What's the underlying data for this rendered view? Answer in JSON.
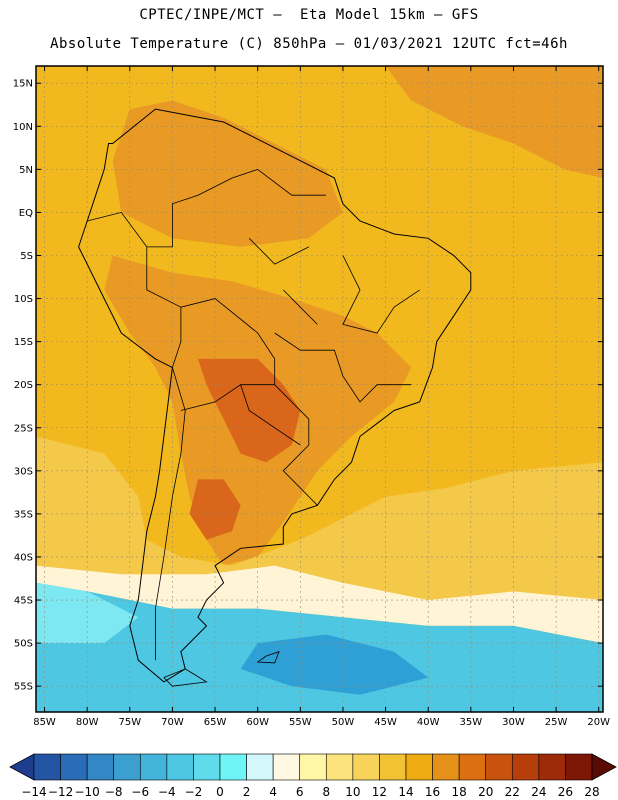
{
  "title": {
    "line1": "CPTEC/INPE/MCT –  Eta Model 15km – GFS",
    "line2": "Absolute Temperature (C) 850hPa – 01/03/2021 12UTC fct=46h"
  },
  "map": {
    "lon_range": [
      -86,
      -19.5
    ],
    "lat_range": [
      -58,
      17
    ],
    "lat_ticks": [
      {
        "value": 15,
        "label": "15N"
      },
      {
        "value": 10,
        "label": "10N"
      },
      {
        "value": 5,
        "label": "5N"
      },
      {
        "value": 0,
        "label": "EQ"
      },
      {
        "value": -5,
        "label": "5S"
      },
      {
        "value": -10,
        "label": "10S"
      },
      {
        "value": -15,
        "label": "15S"
      },
      {
        "value": -20,
        "label": "20S"
      },
      {
        "value": -25,
        "label": "25S"
      },
      {
        "value": -30,
        "label": "30S"
      },
      {
        "value": -35,
        "label": "35S"
      },
      {
        "value": -40,
        "label": "40S"
      },
      {
        "value": -45,
        "label": "45S"
      },
      {
        "value": -50,
        "label": "50S"
      },
      {
        "value": -55,
        "label": "55S"
      }
    ],
    "lon_ticks": [
      {
        "value": -85,
        "label": "85W"
      },
      {
        "value": -80,
        "label": "80W"
      },
      {
        "value": -75,
        "label": "75W"
      },
      {
        "value": -70,
        "label": "70W"
      },
      {
        "value": -65,
        "label": "65W"
      },
      {
        "value": -60,
        "label": "60W"
      },
      {
        "value": -55,
        "label": "55W"
      },
      {
        "value": -50,
        "label": "50W"
      },
      {
        "value": -45,
        "label": "45W"
      },
      {
        "value": -40,
        "label": "40W"
      },
      {
        "value": -35,
        "label": "35W"
      },
      {
        "value": -30,
        "label": "30W"
      },
      {
        "value": -25,
        "label": "25W"
      },
      {
        "value": -20,
        "label": "20W"
      }
    ],
    "background_field_color": "#f2b91e",
    "regions": [
      {
        "name": "northern-atlantic-warm",
        "color": "#e99a25",
        "points": [
          [
            -45,
            17
          ],
          [
            -19.5,
            17
          ],
          [
            -19.5,
            4
          ],
          [
            -24,
            5
          ],
          [
            -30,
            8
          ],
          [
            -36,
            10
          ],
          [
            -42,
            13
          ]
        ]
      },
      {
        "name": "northern-continent-warm",
        "color": "#e99a25",
        "points": [
          [
            -75,
            12
          ],
          [
            -70,
            13
          ],
          [
            -64,
            11
          ],
          [
            -58,
            8
          ],
          [
            -52,
            5
          ],
          [
            -50,
            0
          ],
          [
            -54,
            -3
          ],
          [
            -62,
            -4
          ],
          [
            -70,
            -3
          ],
          [
            -76,
            0
          ],
          [
            -77,
            6
          ]
        ]
      },
      {
        "name": "central-continent-warm",
        "color": "#e99a25",
        "points": [
          [
            -77,
            -5
          ],
          [
            -70,
            -7
          ],
          [
            -63,
            -8
          ],
          [
            -56,
            -10
          ],
          [
            -50,
            -12
          ],
          [
            -46,
            -14
          ],
          [
            -42,
            -18
          ],
          [
            -44,
            -22
          ],
          [
            -49,
            -26
          ],
          [
            -53,
            -30
          ],
          [
            -57,
            -36
          ],
          [
            -60,
            -40
          ],
          [
            -64,
            -41
          ],
          [
            -66,
            -38
          ],
          [
            -68,
            -33
          ],
          [
            -69,
            -28
          ],
          [
            -70,
            -22
          ],
          [
            -72,
            -18
          ],
          [
            -75,
            -14
          ],
          [
            -78,
            -9
          ]
        ]
      },
      {
        "name": "central-hot-core",
        "color": "#d9661a",
        "points": [
          [
            -67,
            -17
          ],
          [
            -60,
            -17
          ],
          [
            -57,
            -20
          ],
          [
            -55,
            -23
          ],
          [
            -56,
            -27
          ],
          [
            -59,
            -29
          ],
          [
            -62,
            -28
          ],
          [
            -64,
            -24
          ],
          [
            -66,
            -20
          ]
        ]
      },
      {
        "name": "argentina-hot-core",
        "color": "#d9661a",
        "points": [
          [
            -67,
            -31
          ],
          [
            -64,
            -31
          ],
          [
            -62,
            -34
          ],
          [
            -63,
            -37
          ],
          [
            -66,
            -38
          ],
          [
            -68,
            -35
          ]
        ]
      },
      {
        "name": "pacific-cool-band",
        "color": "#f4c94a",
        "points": [
          [
            -86,
            -26
          ],
          [
            -78,
            -28
          ],
          [
            -74,
            -33
          ],
          [
            -73,
            -38
          ],
          [
            -69,
            -40
          ],
          [
            -63,
            -41
          ],
          [
            -55,
            -38
          ],
          [
            -45,
            -33
          ],
          [
            -38,
            -32
          ],
          [
            -30,
            -30
          ],
          [
            -19.5,
            -29
          ],
          [
            -19.5,
            -45
          ],
          [
            -30,
            -44
          ],
          [
            -40,
            -45
          ],
          [
            -50,
            -43
          ],
          [
            -58,
            -41
          ],
          [
            -66,
            -42
          ],
          [
            -76,
            -42
          ],
          [
            -86,
            -41
          ]
        ]
      },
      {
        "name": "south-pale-band",
        "color": "#fff4d6",
        "points": [
          [
            -86,
            -41
          ],
          [
            -76,
            -42
          ],
          [
            -66,
            -42
          ],
          [
            -58,
            -41
          ],
          [
            -50,
            -43
          ],
          [
            -40,
            -45
          ],
          [
            -30,
            -44
          ],
          [
            -19.5,
            -45
          ],
          [
            -19.5,
            -50
          ],
          [
            -30,
            -48
          ],
          [
            -40,
            -48
          ],
          [
            -50,
            -47
          ],
          [
            -60,
            -46
          ],
          [
            -70,
            -46
          ],
          [
            -80,
            -44
          ],
          [
            -86,
            -43
          ]
        ]
      },
      {
        "name": "southern-cold-region",
        "color": "#4ec7e3",
        "points": [
          [
            -86,
            -43
          ],
          [
            -80,
            -44
          ],
          [
            -70,
            -46
          ],
          [
            -60,
            -46
          ],
          [
            -50,
            -47
          ],
          [
            -40,
            -48
          ],
          [
            -30,
            -48
          ],
          [
            -19.5,
            -50
          ],
          [
            -19.5,
            -58
          ],
          [
            -86,
            -58
          ]
        ]
      },
      {
        "name": "southern-colder-patch",
        "color": "#2ea0d6",
        "points": [
          [
            -60,
            -50
          ],
          [
            -52,
            -49
          ],
          [
            -44,
            -51
          ],
          [
            -40,
            -54
          ],
          [
            -48,
            -56
          ],
          [
            -56,
            -55
          ],
          [
            -62,
            -53
          ]
        ]
      },
      {
        "name": "southern-cyan-patch",
        "color": "#7ee8f2",
        "points": [
          [
            -86,
            -43
          ],
          [
            -80,
            -44
          ],
          [
            -74,
            -47
          ],
          [
            -78,
            -50
          ],
          [
            -86,
            -50
          ]
        ]
      }
    ],
    "coastline": [
      [
        -77,
        8
      ],
      [
        -72,
        12
      ],
      [
        -64,
        10.5
      ],
      [
        -60,
        8.5
      ],
      [
        -55,
        6
      ],
      [
        -51,
        4
      ],
      [
        -50,
        1
      ],
      [
        -48,
        -1
      ],
      [
        -44,
        -2.5
      ],
      [
        -40,
        -3
      ],
      [
        -37,
        -5
      ],
      [
        -35,
        -7
      ],
      [
        -35,
        -9
      ],
      [
        -37,
        -12
      ],
      [
        -39,
        -15
      ],
      [
        -39.5,
        -18
      ],
      [
        -41,
        -22
      ],
      [
        -44,
        -23
      ],
      [
        -48,
        -26
      ],
      [
        -49,
        -29
      ],
      [
        -51,
        -31
      ],
      [
        -53,
        -34
      ],
      [
        -56,
        -35
      ],
      [
        -57,
        -36.5
      ],
      [
        -57,
        -38.5
      ],
      [
        -62,
        -39
      ],
      [
        -65,
        -41
      ],
      [
        -64,
        -43
      ],
      [
        -66,
        -45
      ],
      [
        -67,
        -47
      ],
      [
        -66,
        -48
      ],
      [
        -69,
        -51
      ],
      [
        -68.5,
        -53
      ],
      [
        -71,
        -54.5
      ],
      [
        -74,
        -52
      ],
      [
        -75,
        -48
      ],
      [
        -74,
        -45
      ],
      [
        -73.5,
        -41
      ],
      [
        -73,
        -37
      ],
      [
        -72,
        -33
      ],
      [
        -71.5,
        -30
      ],
      [
        -71,
        -26
      ],
      [
        -70.5,
        -22
      ],
      [
        -70,
        -18
      ],
      [
        -72,
        -17
      ],
      [
        -76,
        -14
      ],
      [
        -78,
        -10
      ],
      [
        -80,
        -6
      ],
      [
        -81,
        -4
      ],
      [
        -80,
        -1
      ],
      [
        -79,
        2
      ],
      [
        -78,
        5
      ],
      [
        -77.5,
        8
      ]
    ],
    "borders": [
      [
        [
          -70,
          -18
        ],
        [
          -69,
          -15
        ],
        [
          -69,
          -11
        ],
        [
          -73,
          -9
        ],
        [
          -73,
          -4
        ]
      ],
      [
        [
          -80,
          -1
        ],
        [
          -76,
          0
        ],
        [
          -73,
          -4
        ],
        [
          -70,
          -4
        ],
        [
          -70,
          1
        ],
        [
          -67,
          2
        ],
        [
          -63,
          4
        ],
        [
          -60,
          5
        ],
        [
          -56,
          2
        ],
        [
          -52,
          2
        ]
      ],
      [
        [
          -69,
          -11
        ],
        [
          -65,
          -10
        ],
        [
          -60,
          -14
        ],
        [
          -58,
          -17
        ],
        [
          -58,
          -20
        ],
        [
          -54,
          -24
        ],
        [
          -54,
          -27
        ],
        [
          -57,
          -30
        ],
        [
          -53,
          -34
        ]
      ],
      [
        [
          -69,
          -23
        ],
        [
          -65,
          -22
        ],
        [
          -62,
          -20
        ],
        [
          -58,
          -20
        ]
      ],
      [
        [
          -62,
          -20
        ],
        [
          -61,
          -23
        ],
        [
          -58,
          -25
        ],
        [
          -55,
          -27
        ]
      ],
      [
        [
          -70,
          -18
        ],
        [
          -68.5,
          -23
        ],
        [
          -69,
          -28
        ],
        [
          -70,
          -33
        ],
        [
          -71,
          -40
        ],
        [
          -72,
          -46
        ],
        [
          -72,
          -52
        ]
      ],
      [
        [
          -50,
          -5
        ],
        [
          -48,
          -9
        ],
        [
          -50,
          -13
        ],
        [
          -46,
          -14
        ],
        [
          -44,
          -11
        ],
        [
          -41,
          -9
        ]
      ],
      [
        [
          -58,
          -14
        ],
        [
          -55,
          -16
        ],
        [
          -51,
          -16
        ],
        [
          -50,
          -19
        ],
        [
          -48,
          -22
        ],
        [
          -46,
          -20
        ],
        [
          -42,
          -20
        ]
      ],
      [
        [
          -57,
          -9
        ],
        [
          -55,
          -11
        ],
        [
          -53,
          -13
        ]
      ],
      [
        [
          -61,
          -3
        ],
        [
          -58,
          -6
        ],
        [
          -54,
          -4
        ]
      ]
    ],
    "islands": [
      [
        [
          -59,
          -51.5
        ],
        [
          -57.5,
          -51
        ],
        [
          -58,
          -52.3
        ],
        [
          -60,
          -52.2
        ]
      ],
      [
        [
          -68.5,
          -53
        ],
        [
          -66,
          -54.5
        ],
        [
          -70,
          -55
        ],
        [
          -71,
          -54
        ]
      ]
    ]
  },
  "colorbar": {
    "labels": [
      "-14",
      "-12",
      "-10",
      "-8",
      "-6",
      "-4",
      "-2",
      "0",
      "2",
      "4",
      "6",
      "8",
      "10",
      "12",
      "14",
      "16",
      "18",
      "20",
      "22",
      "24",
      "26",
      "28"
    ],
    "colors": [
      "#1e3d8f",
      "#2454a4",
      "#2a6cb6",
      "#3387c4",
      "#3b9fcf",
      "#44b5da",
      "#4ec7e3",
      "#5fdbec",
      "#6ff5f5",
      "#d4f7fb",
      "#fff8e2",
      "#fff6a6",
      "#fce37c",
      "#f7d35b",
      "#f2c235",
      "#eeac12",
      "#e59018",
      "#db6f12",
      "#c9520e",
      "#b63e0b",
      "#9d2a09",
      "#7c1706",
      "#5a0c04"
    ]
  }
}
